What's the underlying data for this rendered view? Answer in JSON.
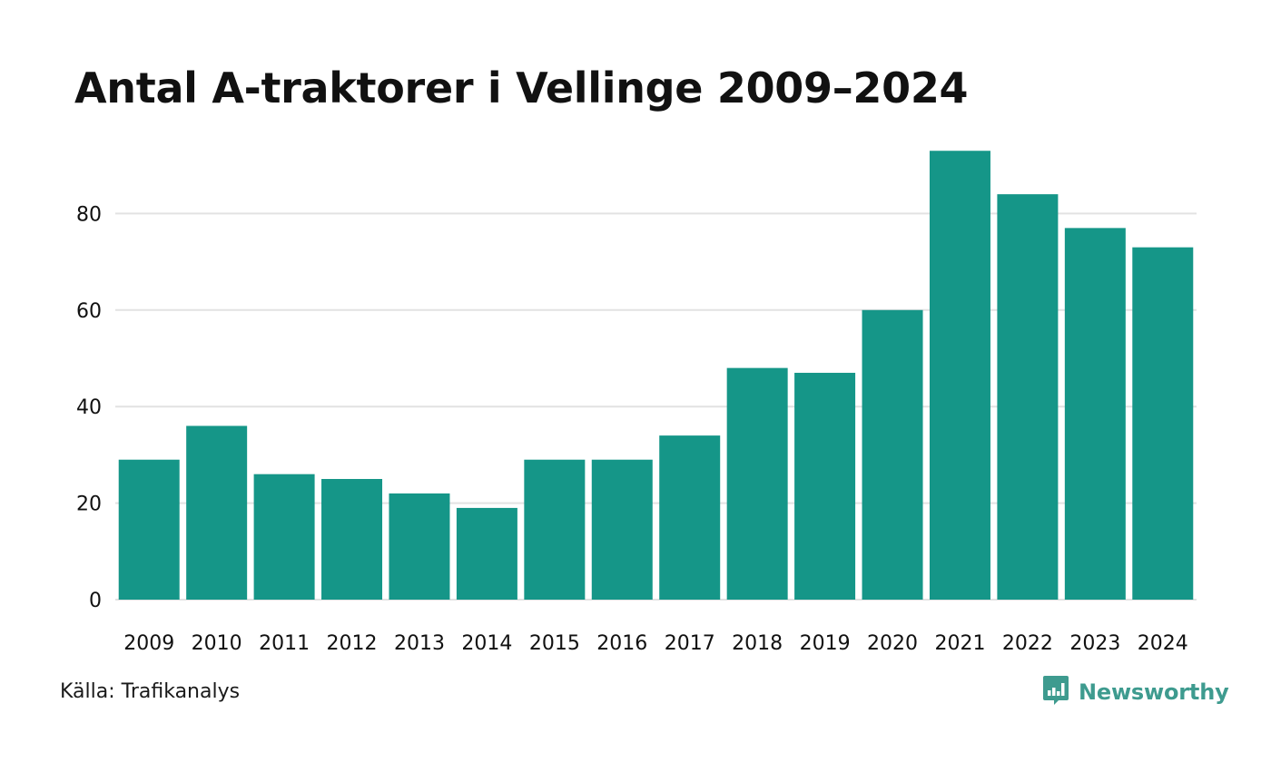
{
  "title": "Antal A-traktorer i Vellinge 2009–2024",
  "source": "Källa: Trafikanalys",
  "brand": {
    "name": "Newsworthy",
    "icon": "newsworthy-logo-icon",
    "color": "#3e9b8f"
  },
  "colors": {
    "bar": "#159688",
    "grid": "#e2e2e2",
    "text": "#111111"
  },
  "chart_data": {
    "type": "bar",
    "title": "Antal A-traktorer i Vellinge 2009–2024",
    "xlabel": "",
    "ylabel": "",
    "categories": [
      "2009",
      "2010",
      "2011",
      "2012",
      "2013",
      "2014",
      "2015",
      "2016",
      "2017",
      "2018",
      "2019",
      "2020",
      "2021",
      "2022",
      "2023",
      "2024"
    ],
    "values": [
      29,
      36,
      26,
      25,
      22,
      19,
      29,
      29,
      34,
      48,
      47,
      60,
      93,
      84,
      77,
      73
    ],
    "ylim": [
      0,
      100
    ],
    "yticks": [
      0,
      20,
      40,
      60,
      80
    ],
    "grid": true,
    "legend": "none"
  }
}
